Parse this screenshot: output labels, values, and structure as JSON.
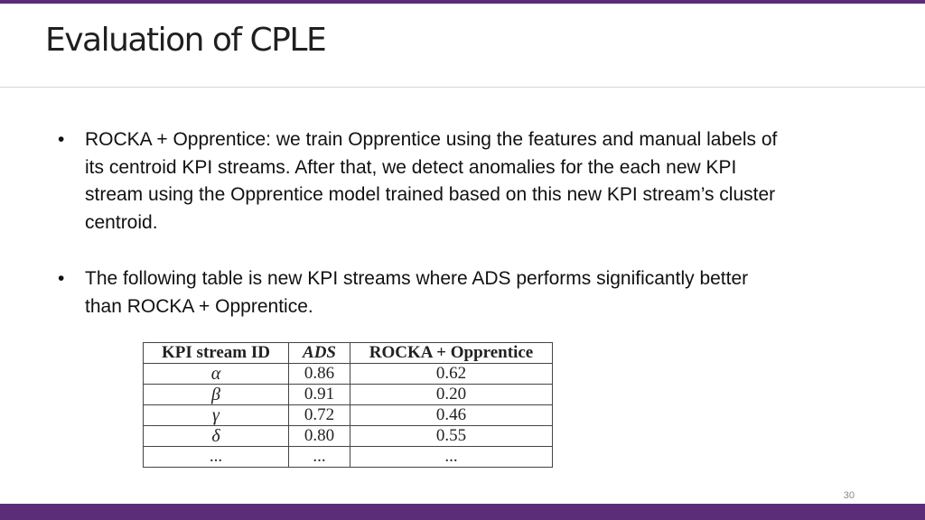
{
  "slide": {
    "title": "Evaluation of CPLE",
    "bullets": [
      {
        "marker": "•",
        "text": "ROCKA + Opprentice:  we train Opprentice using the features and manual labels of its centroid KPI streams. After that, we detect anomalies for the each new KPI stream using the Opprentice model trained based on this new KPI stream’s cluster centroid."
      },
      {
        "marker": "•",
        "text": "The following table is new KPI streams where ADS performs significantly better than ROCKA + Opprentice."
      }
    ],
    "table": {
      "headers": [
        "KPI stream ID",
        "ADS",
        "ROCKA  +  Opprentice"
      ],
      "rows": [
        [
          "α",
          "0.86",
          "0.62"
        ],
        [
          "β",
          "0.91",
          "0.20"
        ],
        [
          "γ",
          "0.72",
          "0.46"
        ],
        [
          "δ",
          "0.80",
          "0.55"
        ],
        [
          "...",
          "...",
          "..."
        ]
      ]
    },
    "page_number": "30"
  },
  "colors": {
    "accent": "#5b2d79",
    "divider": "#d4d4d4"
  }
}
